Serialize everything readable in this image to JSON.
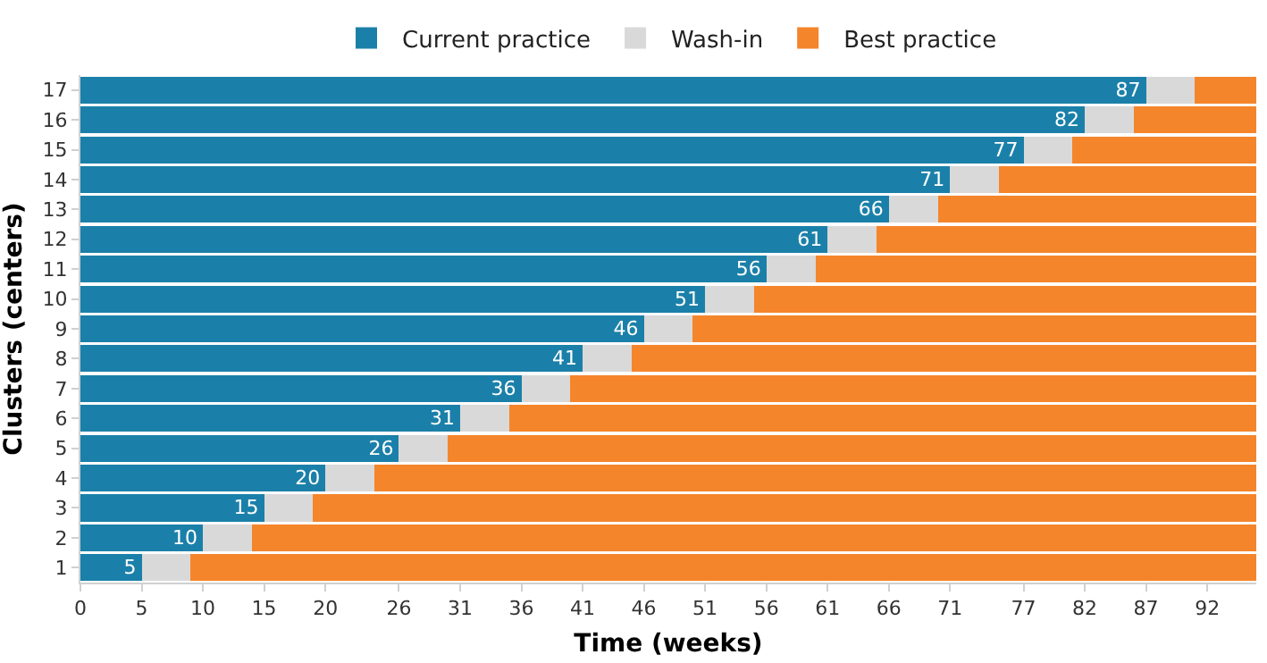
{
  "chart_data": {
    "type": "bar",
    "orientation": "horizontal",
    "stacked": true,
    "xlabel": "Time (weeks)",
    "ylabel": "Clusters (centers)",
    "categories": [
      "17",
      "16",
      "15",
      "14",
      "13",
      "12",
      "11",
      "10",
      "9",
      "8",
      "7",
      "6",
      "5",
      "4",
      "3",
      "2",
      "1"
    ],
    "series": [
      {
        "name": "Current practice",
        "color": "#1b80a9",
        "values": [
          87,
          82,
          77,
          71,
          66,
          61,
          56,
          51,
          46,
          41,
          36,
          31,
          26,
          20,
          15,
          10,
          5
        ],
        "value_labels": [
          "87",
          "82",
          "77",
          "71",
          "66",
          "61",
          "56",
          "51",
          "46",
          "41",
          "36",
          "31",
          "26",
          "20",
          "15",
          "10",
          "5"
        ]
      },
      {
        "name": "Wash-in",
        "color": "#d9d9d9",
        "values": [
          4,
          4,
          4,
          4,
          4,
          4,
          4,
          4,
          4,
          4,
          4,
          4,
          4,
          4,
          4,
          4,
          4
        ]
      },
      {
        "name": "Best practice",
        "color": "#f5852b",
        "values": [
          5,
          10,
          15,
          21,
          26,
          31,
          36,
          41,
          46,
          51,
          56,
          61,
          66,
          72,
          77,
          82,
          87
        ]
      }
    ],
    "xlim": [
      0,
      96
    ],
    "xticks": [
      0,
      5,
      10,
      15,
      20,
      26,
      31,
      36,
      41,
      46,
      51,
      56,
      61,
      66,
      71,
      77,
      82,
      87,
      92
    ],
    "legend": "top",
    "grid": false
  }
}
